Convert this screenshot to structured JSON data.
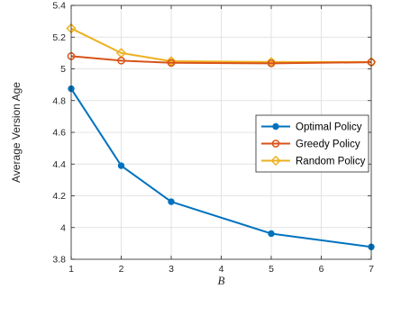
{
  "chart_data": {
    "type": "line",
    "x": [
      1,
      2,
      3,
      5,
      7
    ],
    "series": [
      {
        "name": "Optimal Policy",
        "color": "#0072BD",
        "marker": "circle-filled",
        "values": [
          4.875,
          4.39,
          4.163,
          3.962,
          3.878
        ]
      },
      {
        "name": "Greedy Policy",
        "color": "#D95319",
        "marker": "circle-open",
        "values": [
          5.08,
          5.052,
          5.038,
          5.035,
          5.042
        ]
      },
      {
        "name": "Random Policy",
        "color": "#EDB120",
        "marker": "diamond-open",
        "values": [
          5.255,
          5.1,
          5.048,
          5.043,
          5.043
        ]
      }
    ],
    "xlabel": "B",
    "ylabel": "Average Version Age",
    "xlim": [
      1,
      7
    ],
    "ylim": [
      3.8,
      5.4
    ],
    "xticks": [
      1,
      2,
      3,
      4,
      5,
      6,
      7
    ],
    "yticks": [
      "3.8",
      "4",
      "4.2",
      "4.4",
      "4.6",
      "4.8",
      "5",
      "5.2",
      "5.4"
    ],
    "grid": true,
    "legend_position": "right"
  }
}
